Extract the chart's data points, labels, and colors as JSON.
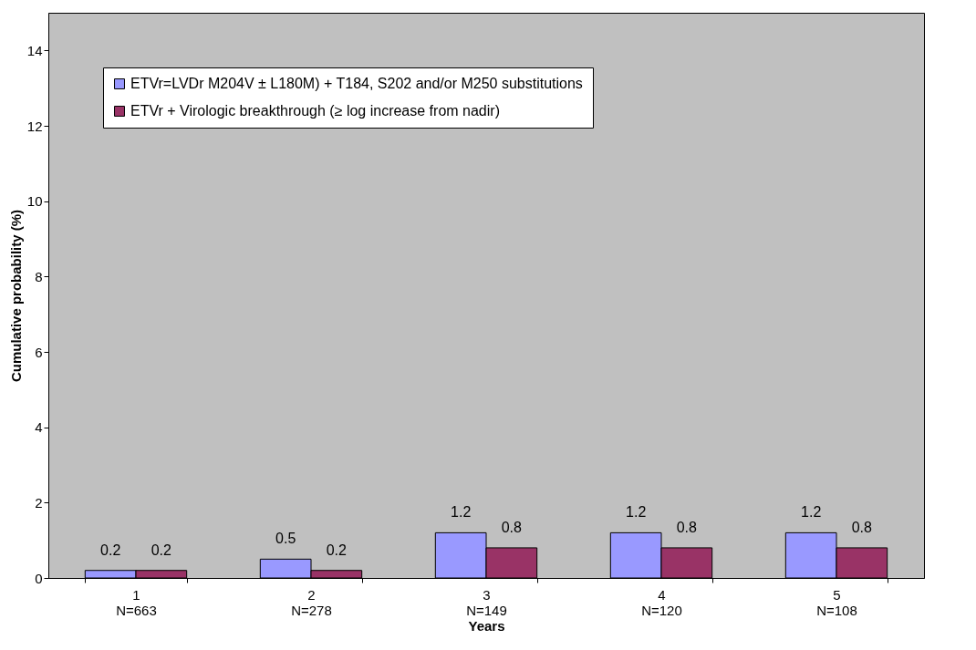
{
  "chart_data": {
    "type": "bar",
    "xlabel": "Years",
    "ylabel": "Cumulative probability (%)",
    "categories": [
      "1\nN=663",
      "2\nN=278",
      "3\nN=149",
      "4\nN=120",
      "5\nN=108"
    ],
    "series": [
      {
        "name": "ETVr=LVDr M204V ± L180M) + T184, S202 and/or M250 substitutions",
        "color": "#9999ff",
        "values": [
          0.2,
          0.5,
          1.2,
          1.2,
          1.2
        ]
      },
      {
        "name": "ETVr + Virologic breakthrough (≥ log increase from nadir)",
        "color": "#993366",
        "values": [
          0.2,
          0.2,
          0.8,
          0.8,
          0.8
        ]
      }
    ],
    "ylim": [
      0,
      15
    ],
    "yticks": [
      0,
      2,
      4,
      6,
      8,
      10,
      12,
      14
    ],
    "grid": false,
    "legend": "top left",
    "data_labels": true
  }
}
